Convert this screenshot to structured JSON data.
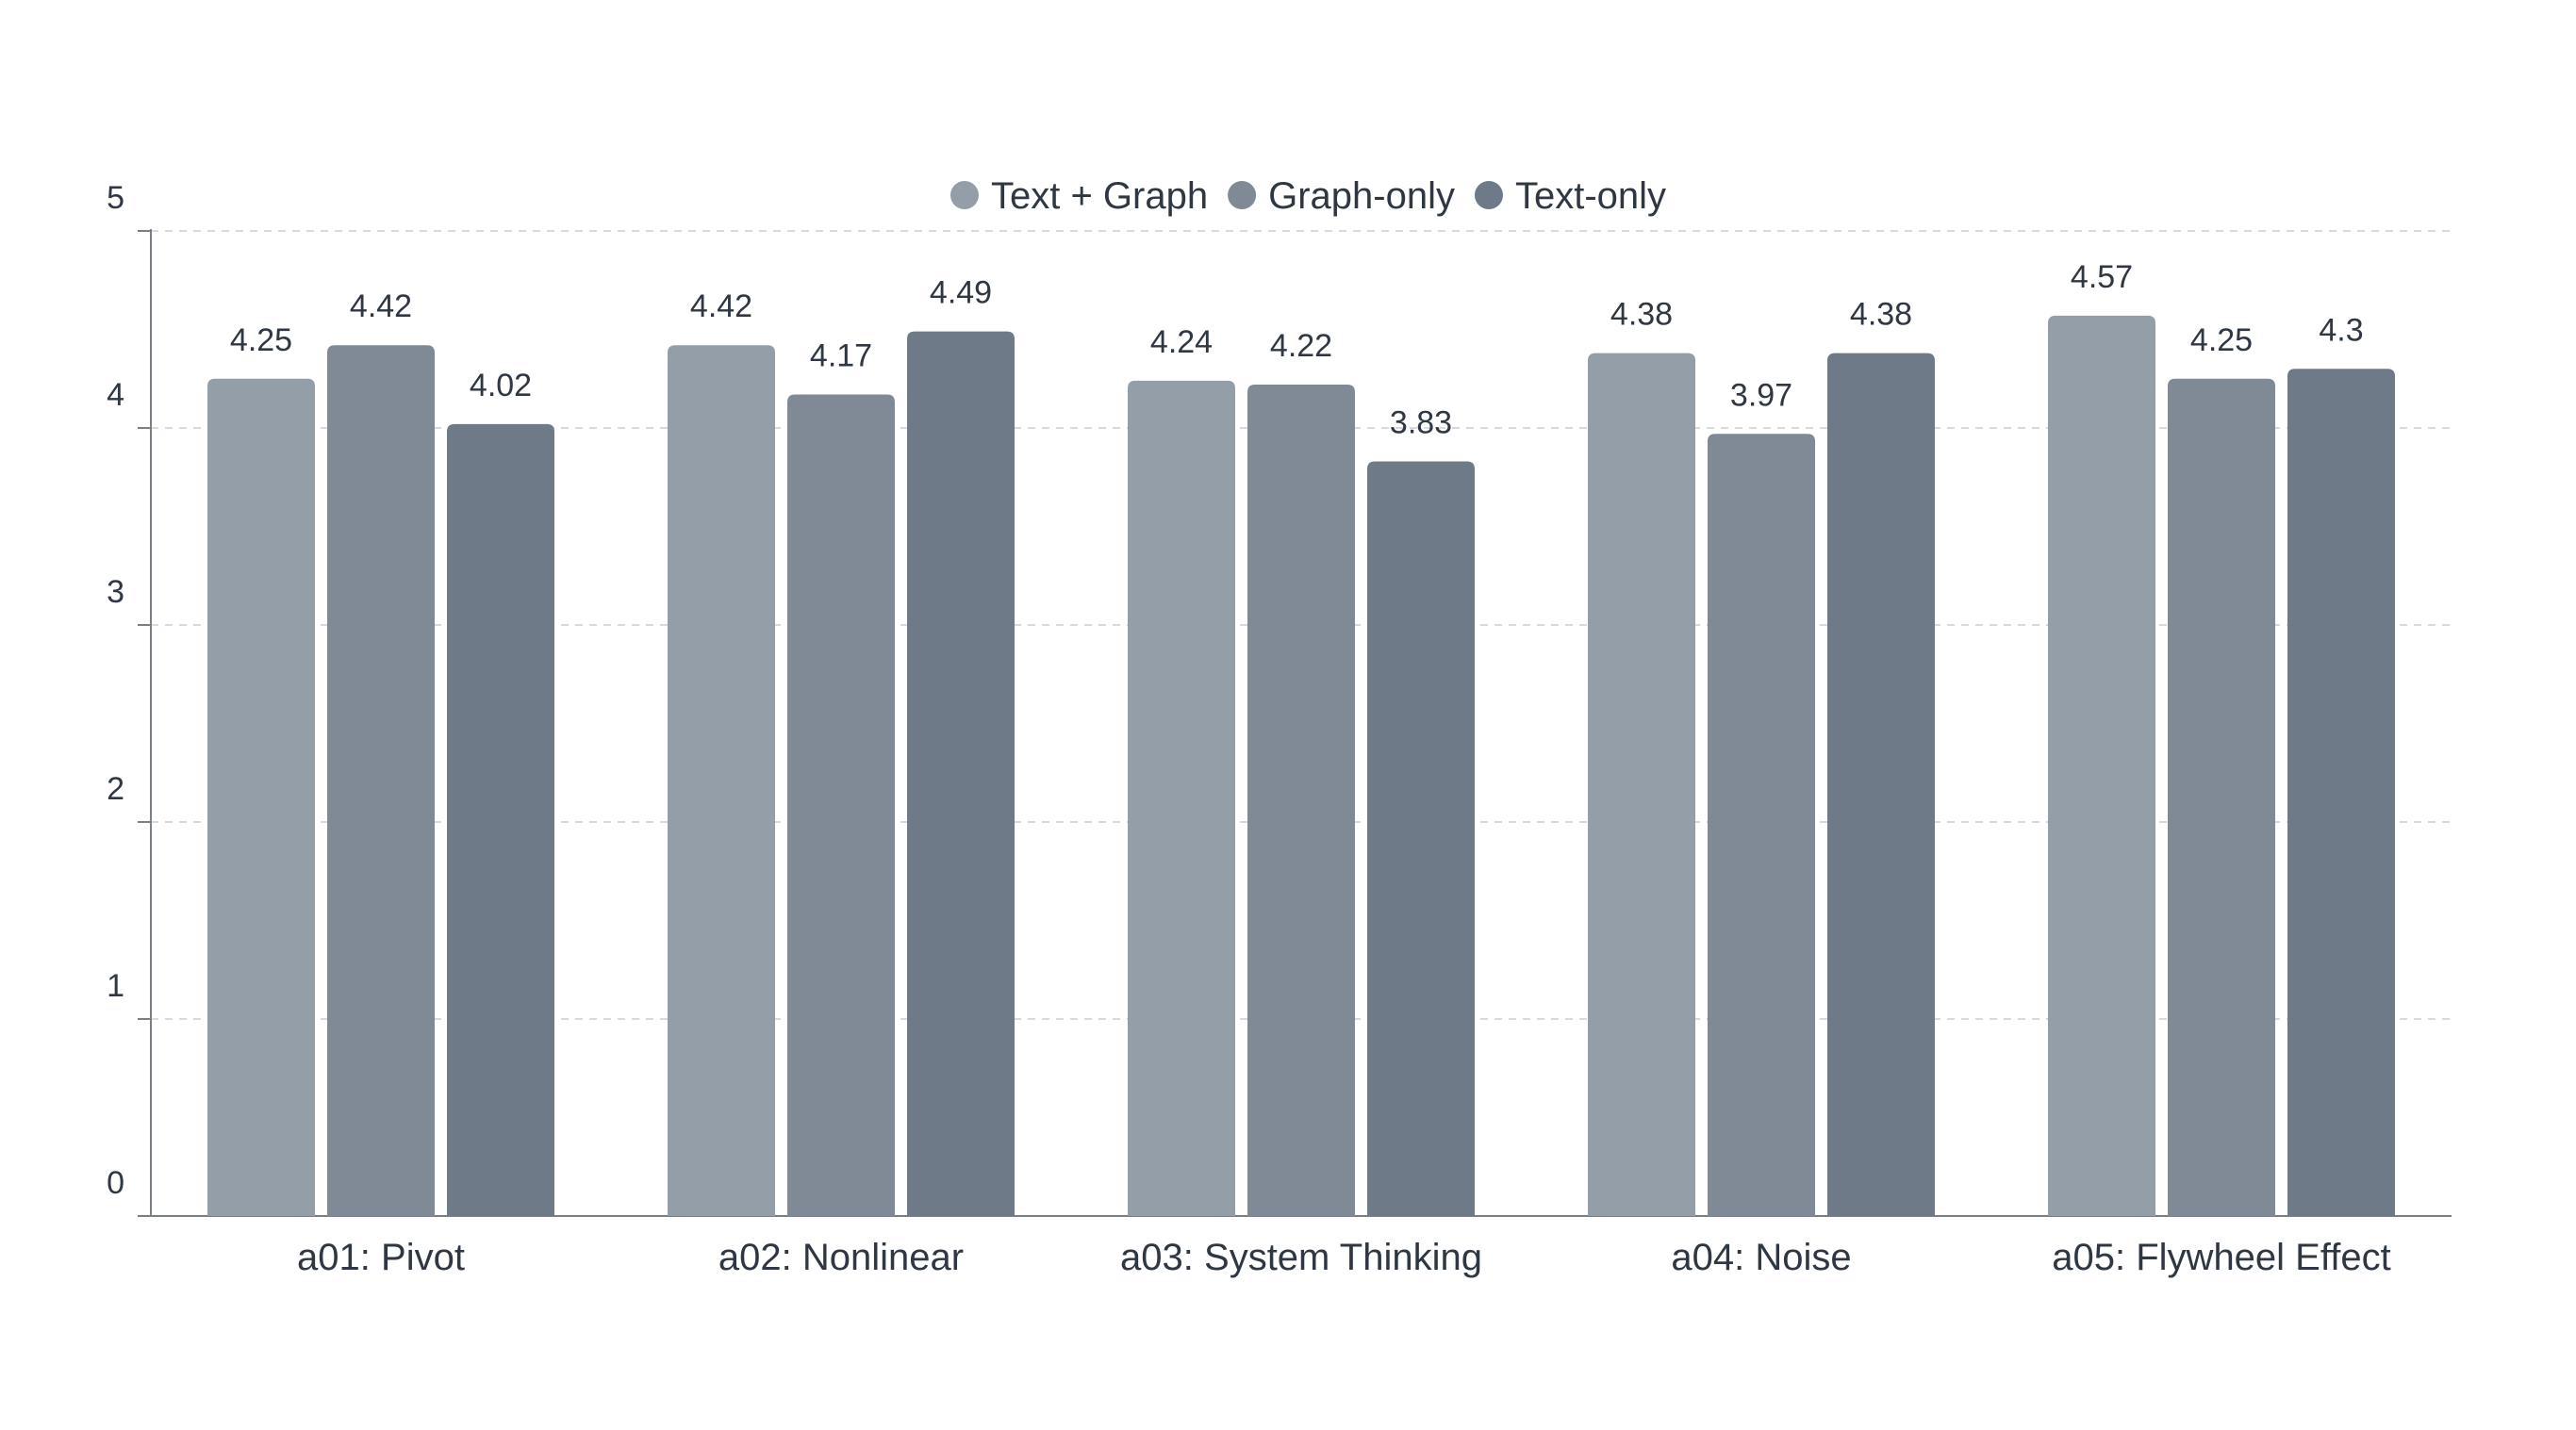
{
  "chart_data": {
    "type": "bar",
    "title": "",
    "xlabel": "",
    "ylabel": "",
    "categories": [
      "a01: Pivot",
      "a02: Nonlinear",
      "a03: System Thinking",
      "a04: Noise",
      "a05: Flywheel Effect"
    ],
    "series": [
      {
        "name": "Text + Graph",
        "color": "#949ea8",
        "values": [
          4.25,
          4.42,
          4.24,
          4.38,
          4.57
        ]
      },
      {
        "name": "Graph-only",
        "color": "#7f8a96",
        "values": [
          4.42,
          4.17,
          4.22,
          3.97,
          4.25
        ]
      },
      {
        "name": "Text-only",
        "color": "#6e7a88",
        "values": [
          4.02,
          4.49,
          3.83,
          4.38,
          4.3
        ]
      }
    ],
    "ylim": [
      0,
      5
    ],
    "yticks": [
      0,
      1,
      2,
      3,
      4,
      5
    ],
    "grid": true,
    "legend_position": "top-center",
    "value_labels": true
  }
}
